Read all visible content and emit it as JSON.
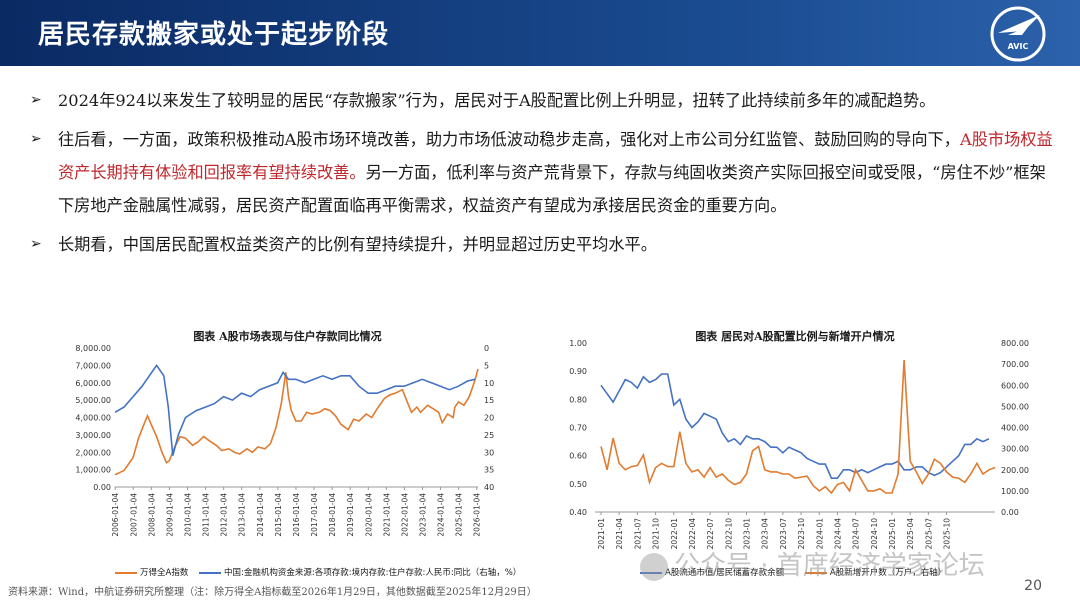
{
  "header": {
    "title": "居民存款搬家或处于起步阶段",
    "logo_text": "AVIC"
  },
  "bullets": {
    "b1": "2024年924以来发生了较明显的居民“存款搬家”行为，居民对于A股配置比例上升明显，扭转了此持续前多年的减配趋势。",
    "b2_a": "往后看，一方面，政策积极推动A股市场环境改善，助力市场低波动稳步走高，强化对上市公司分红监管、鼓励回购的导向下，",
    "b2_red": "A股市场权益资产长期持有体验和回报率有望持续改善。",
    "b2_b": "另一方面，低利率与资产荒背景下，存款与纯固收类资产实际回报空间或受限，“房住不炒”框架下房地产金融属性减弱，居民资产配置面临再平衡需求，权益资产有望成为承接居民资金的重要方向。",
    "b3": "长期看，中国居民配置权益类资产的比例有望持续提升，并明显超过历史平均水平。"
  },
  "colors": {
    "orange": "#e07b2f",
    "blue": "#4472c4",
    "header": "#0f3577",
    "red": "#c0272d"
  },
  "chart_data": [
    {
      "type": "line",
      "title": "图表  A股市场表现与住户存款同比情况",
      "x_ticks": [
        "2006-01-04",
        "2007-01-04",
        "2008-01-04",
        "2009-01-04",
        "2010-01-04",
        "2011-01-04",
        "2012-01-04",
        "2013-01-04",
        "2014-01-04",
        "2015-01-04",
        "2016-01-04",
        "2017-01-04",
        "2018-01-04",
        "2019-01-04",
        "2020-01-04",
        "2021-01-04",
        "2022-01-04",
        "2023-01-04",
        "2024-01-04",
        "2025-01-04",
        "2026-01-04"
      ],
      "y_left_ticks": [
        "0.00",
        "1,000.00",
        "2,000.00",
        "3,000.00",
        "4,000.00",
        "5,000.00",
        "6,000.00",
        "7,000.00",
        "8,000.00"
      ],
      "y_left_range": [
        0,
        8000
      ],
      "y_right_ticks": [
        "0",
        "5",
        "10",
        "15",
        "20",
        "25",
        "30",
        "35",
        "40"
      ],
      "y_right_range": [
        0,
        40
      ],
      "y_right_inverted": true,
      "series": [
        {
          "name": "万得全A指数",
          "axis": "left",
          "color": "#e07b2f",
          "x": [
            2006.0,
            2006.5,
            2007.0,
            2007.3,
            2007.6,
            2007.8,
            2008.0,
            2008.3,
            2008.6,
            2008.85,
            2009.0,
            2009.3,
            2009.6,
            2009.9,
            2010.3,
            2010.6,
            2010.9,
            2011.3,
            2011.6,
            2011.9,
            2012.3,
            2012.6,
            2012.9,
            2013.3,
            2013.6,
            2013.9,
            2014.3,
            2014.6,
            2014.9,
            2015.2,
            2015.45,
            2015.6,
            2015.75,
            2016.0,
            2016.3,
            2016.6,
            2016.9,
            2017.3,
            2017.6,
            2017.9,
            2018.2,
            2018.5,
            2018.9,
            2019.2,
            2019.5,
            2019.9,
            2020.2,
            2020.5,
            2020.9,
            2021.2,
            2021.5,
            2021.9,
            2022.2,
            2022.4,
            2022.7,
            2022.9,
            2023.3,
            2023.6,
            2023.9,
            2024.1,
            2024.4,
            2024.7,
            2024.8,
            2025.0,
            2025.3,
            2025.6,
            2025.9,
            2026.08
          ],
          "values": [
            700,
            950,
            1700,
            2800,
            3600,
            4100,
            3600,
            2900,
            2000,
            1400,
            1500,
            2300,
            2900,
            2800,
            2400,
            2600,
            2900,
            2600,
            2400,
            2100,
            2200,
            2000,
            1900,
            2200,
            2000,
            2300,
            2200,
            2500,
            3400,
            4800,
            6600,
            5200,
            4400,
            3800,
            3800,
            4300,
            4200,
            4300,
            4500,
            4400,
            4100,
            3600,
            3300,
            3900,
            3800,
            4200,
            4000,
            4500,
            5100,
            5300,
            5400,
            5600,
            4800,
            4300,
            4600,
            4300,
            4700,
            4500,
            4300,
            3700,
            4200,
            4000,
            4600,
            4900,
            4700,
            5200,
            6100,
            6800
          ]
        },
        {
          "name": "中国:金融机构资金来源:各项存款:境内存款:住户存款:人民币:同比（右轴，%）",
          "axis": "right",
          "color": "#4472c4",
          "x": [
            2006.0,
            2006.5,
            2007.0,
            2007.5,
            2007.9,
            2008.3,
            2008.7,
            2008.95,
            2009.2,
            2009.5,
            2009.9,
            2010.5,
            2011.0,
            2011.5,
            2012.0,
            2012.5,
            2013.0,
            2013.5,
            2014.0,
            2014.5,
            2015.0,
            2015.3,
            2015.6,
            2016.0,
            2016.5,
            2017.0,
            2017.5,
            2018.0,
            2018.5,
            2019.0,
            2019.5,
            2020.0,
            2020.5,
            2021.0,
            2021.5,
            2022.0,
            2022.5,
            2023.0,
            2023.5,
            2024.0,
            2024.5,
            2025.0,
            2025.5,
            2025.92
          ],
          "values": [
            18.5,
            17,
            14,
            11,
            8,
            5,
            8,
            17,
            31,
            25,
            20,
            18,
            17,
            16,
            14,
            15,
            13,
            14,
            12,
            11,
            10,
            7,
            9,
            9,
            10,
            9,
            8,
            9,
            8,
            8,
            11,
            13,
            13,
            12,
            11,
            11,
            10,
            9,
            10,
            11,
            12,
            11,
            9.5,
            9
          ]
        }
      ],
      "legend": [
        {
          "label": "万得全A指数",
          "color": "#e07b2f"
        },
        {
          "label": "中国:金融机构资金来源:各项存款:境内存款:住户存款:人民币:同比（右轴，%）",
          "color": "#4472c4"
        }
      ]
    },
    {
      "type": "line",
      "title": "图表  居民对A股配置比例与新增开户情况",
      "x_ticks": [
        "2021-01",
        "2021-04",
        "2021-07",
        "2021-10",
        "2022-01",
        "2022-04",
        "2022-07",
        "2022-10",
        "2023-01",
        "2023-04",
        "2023-07",
        "2023-10",
        "2024-01",
        "2024-04",
        "2024-07",
        "2024-10",
        "2025-01",
        "2025-04",
        "2025-07",
        "2025-10"
      ],
      "y_left_ticks": [
        "0.40",
        "0.50",
        "0.60",
        "0.70",
        "0.80",
        "0.90",
        "1.00"
      ],
      "y_left_range": [
        0.4,
        1.0
      ],
      "y_right_ticks": [
        "0.00",
        "100.00",
        "200.00",
        "300.00",
        "400.00",
        "500.00",
        "600.00",
        "700.00",
        "800.00"
      ],
      "y_right_range": [
        0,
        800
      ],
      "series": [
        {
          "name": "A股流通市值/居民储蓄存款余额",
          "axis": "left",
          "color": "#4472c4",
          "values": [
            0.85,
            0.82,
            0.79,
            0.83,
            0.87,
            0.86,
            0.84,
            0.88,
            0.86,
            0.87,
            0.89,
            0.89,
            0.78,
            0.8,
            0.73,
            0.7,
            0.72,
            0.75,
            0.74,
            0.73,
            0.68,
            0.65,
            0.66,
            0.64,
            0.67,
            0.66,
            0.66,
            0.65,
            0.63,
            0.63,
            0.61,
            0.63,
            0.62,
            0.61,
            0.59,
            0.58,
            0.57,
            0.57,
            0.52,
            0.52,
            0.55,
            0.55,
            0.54,
            0.55,
            0.54,
            0.55,
            0.56,
            0.57,
            0.57,
            0.58,
            0.55,
            0.55,
            0.56,
            0.56,
            0.54,
            0.53,
            0.54,
            0.56,
            0.58,
            0.6,
            0.64,
            0.64,
            0.66,
            0.65,
            0.66
          ]
        },
        {
          "name": "A股新增开户数（万户，右轴）",
          "axis": "right",
          "color": "#e07b2f",
          "values": [
            310,
            200,
            350,
            230,
            200,
            215,
            220,
            270,
            140,
            210,
            230,
            215,
            215,
            380,
            230,
            190,
            200,
            165,
            210,
            165,
            180,
            150,
            130,
            140,
            180,
            290,
            310,
            200,
            190,
            190,
            180,
            180,
            160,
            165,
            170,
            125,
            100,
            120,
            90,
            130,
            140,
            100,
            200,
            150,
            100,
            100,
            110,
            90,
            90,
            180,
            720,
            240,
            190,
            135,
            180,
            250,
            230,
            190,
            165,
            160,
            140,
            180,
            230,
            180,
            200,
            210
          ]
        }
      ],
      "legend": [
        {
          "label": "A股流通市值/居民储蓄存款余额",
          "color": "#4472c4"
        },
        {
          "label": "A股新增开户数（万户，右轴）",
          "color": "#e07b2f"
        }
      ]
    }
  ],
  "footer": {
    "source": "资料来源：Wind，中航证券研究所整理（注：除万得全A指标截至2026年1月29日，其他数据截至2025年12月29日）",
    "page": "20",
    "watermark": "公众号 · 首席经济学家论坛"
  }
}
